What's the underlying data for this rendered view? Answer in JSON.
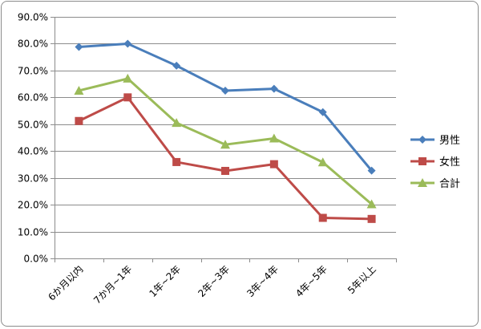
{
  "chart_data": {
    "type": "line",
    "title": "",
    "xlabel": "",
    "ylabel": "",
    "ylim": [
      0,
      90
    ],
    "ytick_step": 10,
    "ytick_format": "percent_1dp",
    "grid": true,
    "legend_position": "right",
    "categories": [
      "6か月以内",
      "7か月~1年",
      "1年~2年",
      "2年~3年",
      "3年~4年",
      "4年~5年",
      "5年以上"
    ],
    "series": [
      {
        "name": "男性",
        "color": "#4a7ebb",
        "marker": "diamond",
        "values": [
          78.8,
          80.0,
          71.8,
          62.5,
          63.2,
          54.5,
          32.7
        ]
      },
      {
        "name": "女性",
        "color": "#be4b48",
        "marker": "square",
        "values": [
          51.2,
          60.0,
          35.9,
          32.6,
          35.1,
          15.1,
          14.7
        ]
      },
      {
        "name": "合計",
        "color": "#9bbb59",
        "marker": "triangle",
        "values": [
          62.5,
          67.0,
          50.5,
          42.4,
          44.7,
          35.8,
          20.2
        ]
      }
    ]
  }
}
